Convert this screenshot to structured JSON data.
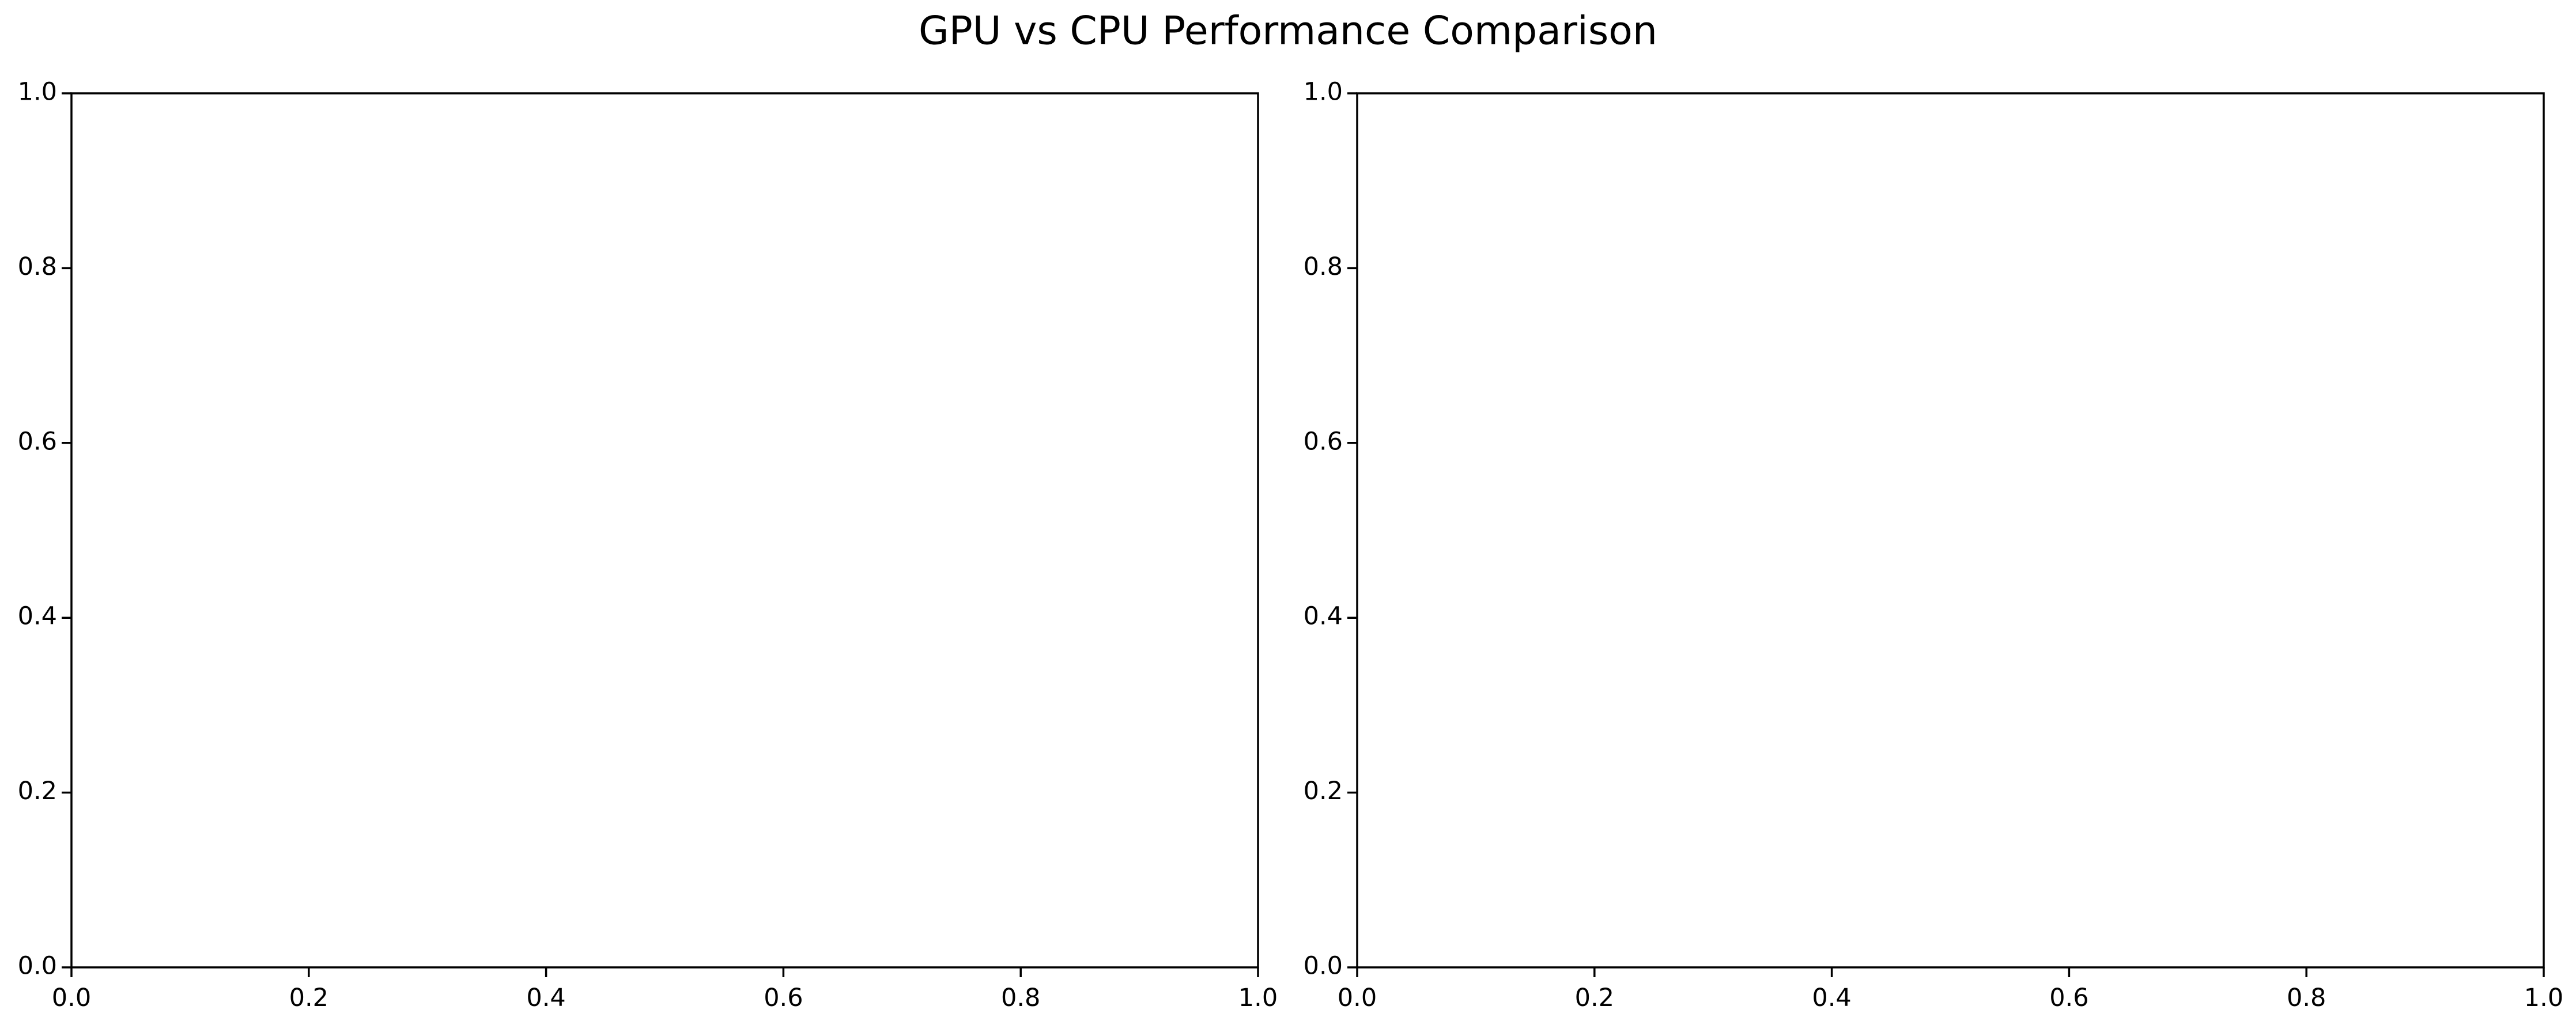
{
  "chart_data": {
    "title": "GPU vs CPU Performance Comparison",
    "subplots": [
      {
        "type": "line",
        "title": "",
        "xlabel": "",
        "ylabel": "",
        "series": [],
        "xlim": [
          0.0,
          1.0
        ],
        "ylim": [
          0.0,
          1.0
        ],
        "xticks": [
          "0.0",
          "0.2",
          "0.4",
          "0.6",
          "0.8",
          "1.0"
        ],
        "yticks": [
          "0.0",
          "0.2",
          "0.4",
          "0.6",
          "0.8",
          "1.0"
        ],
        "grid": false,
        "legend": "none"
      },
      {
        "type": "line",
        "title": "",
        "xlabel": "",
        "ylabel": "",
        "series": [],
        "xlim": [
          0.0,
          1.0
        ],
        "ylim": [
          0.0,
          1.0
        ],
        "xticks": [
          "0.0",
          "0.2",
          "0.4",
          "0.6",
          "0.8",
          "1.0"
        ],
        "yticks": [
          "0.0",
          "0.2",
          "0.4",
          "0.6",
          "0.8",
          "1.0"
        ],
        "grid": false,
        "legend": "none"
      }
    ]
  }
}
